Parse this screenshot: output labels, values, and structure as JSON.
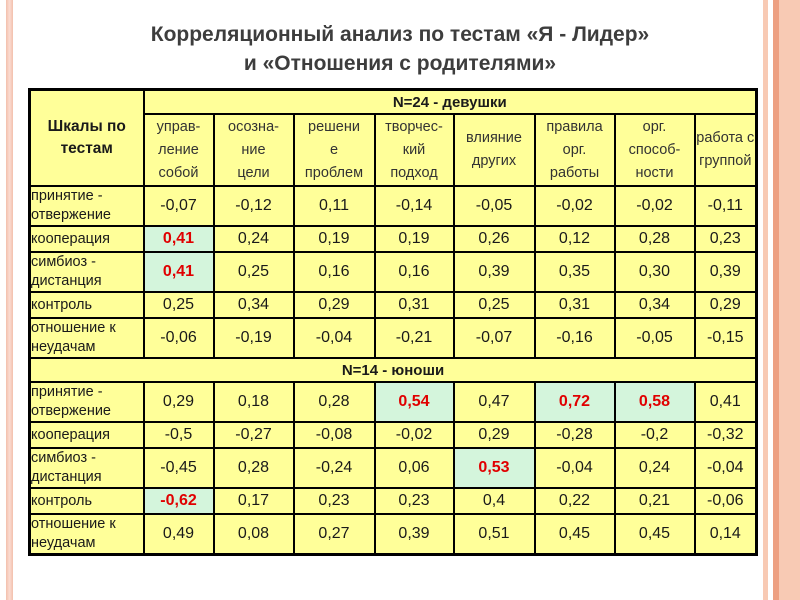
{
  "title": {
    "line1": "Корреляционный анализ по тестам «Я - Лидер»",
    "line2": "и «Отношения с родителями»"
  },
  "table": {
    "corner_label": "Шкалы по\nтестам",
    "columns": [
      "управ-\nление\nсобой",
      "осозна-\nние\nцели",
      "решени\nе\nпроблем",
      "творчес-\nкий\nподход",
      "влияние\nдругих",
      "правила\nорг.\nработы",
      "орг.\nспособ-\nности",
      "работа с\nгруппой"
    ],
    "sections": [
      {
        "label": "N=24 - девушки",
        "rows": [
          {
            "label": "принятие -\nотвержение",
            "values": [
              "-0,07",
              "-0,12",
              "0,11",
              "-0,14",
              "-0,05",
              "-0,02",
              "-0,02",
              "-0,11"
            ],
            "highlights": []
          },
          {
            "label": "кооперация",
            "values": [
              "0,41",
              "0,24",
              "0,19",
              "0,19",
              "0,26",
              "0,12",
              "0,28",
              "0,23"
            ],
            "highlights": [
              0
            ]
          },
          {
            "label": "симбиоз -\nдистанция",
            "values": [
              "0,41",
              "0,25",
              "0,16",
              "0,16",
              "0,39",
              "0,35",
              "0,30",
              "0,39"
            ],
            "highlights": [
              0
            ]
          },
          {
            "label": "контроль",
            "values": [
              "0,25",
              "0,34",
              "0,29",
              "0,31",
              "0,25",
              "0,31",
              "0,34",
              "0,29"
            ],
            "highlights": []
          },
          {
            "label": "отношение к\nнеудачам",
            "values": [
              "-0,06",
              "-0,19",
              "-0,04",
              "-0,21",
              "-0,07",
              "-0,16",
              "-0,05",
              "-0,15"
            ],
            "highlights": []
          }
        ]
      },
      {
        "label": "N=14 - юноши",
        "rows": [
          {
            "label": "принятие -\nотвержение",
            "values": [
              "0,29",
              "0,18",
              "0,28",
              "0,54",
              "0,47",
              "0,72",
              "0,58",
              "0,41"
            ],
            "highlights": [
              3,
              5,
              6
            ]
          },
          {
            "label": "кооперация",
            "values": [
              "-0,5",
              "-0,27",
              "-0,08",
              "-0,02",
              "0,29",
              "-0,28",
              "-0,2",
              "-0,32"
            ],
            "highlights": []
          },
          {
            "label": "симбиоз -\nдистанция",
            "values": [
              "-0,45",
              "0,28",
              "-0,24",
              "0,06",
              "0,53",
              "-0,04",
              "0,24",
              "-0,04"
            ],
            "highlights": [
              4
            ]
          },
          {
            "label": "контроль",
            "values": [
              "-0,62",
              "0,17",
              "0,23",
              "0,23",
              "0,4",
              "0,22",
              "0,21",
              "-0,06"
            ],
            "highlights": [
              0
            ]
          },
          {
            "label": "отношение к\nнеудачам",
            "values": [
              "0,49",
              "0,08",
              "0,27",
              "0,39",
              "0,51",
              "0,45",
              "0,45",
              "0,14"
            ],
            "highlights": []
          }
        ]
      }
    ]
  },
  "colors": {
    "page_bg": "#ffffff",
    "cell_bg": "#ffff99",
    "highlight_bg": "#d4f5dc",
    "highlight_text": "#e00000",
    "value_text": "#1a1a1a",
    "label_text": "#333333",
    "title_text": "#3d3d3d",
    "table_border": "#000000",
    "stripe_pink": "#f3c0ad",
    "stripe_pink_light": "#fbdcd2",
    "stripe_salmon": "#f8cab4",
    "stripe_salmon_dark": "#eda082"
  }
}
